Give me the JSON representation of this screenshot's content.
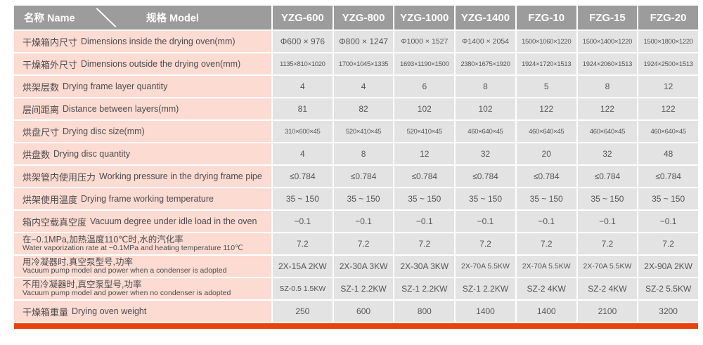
{
  "header": {
    "name_label": "名称 Name",
    "model_label": "规格 Model",
    "models": [
      "YZG-600",
      "YZG-800",
      "YZG-1000",
      "YZG-1400",
      "FZG-10",
      "FZG-15",
      "FZG-20"
    ]
  },
  "rows": [
    {
      "label_zh": "干燥箱内尺寸",
      "label_en": "Dimensions inside the drying oven(mm)",
      "two_line": false,
      "values": [
        "Φ600 × 976",
        "Φ800 × 1247",
        "Φ1000 × 1527",
        "Φ1400 × 2054",
        "1500×1060×1220",
        "1500×1400×1220",
        "1500×1800×1220"
      ]
    },
    {
      "label_zh": "干燥箱外尺寸",
      "label_en": "Dimensions outside the drying oven(mm)",
      "two_line": false,
      "values": [
        "1135×810×1020",
        "1700×1045×1335",
        "1693×1190×1500",
        "2380×1675×1920",
        "1924×1720×1513",
        "1924×2060×1513",
        "1924×2500×1513"
      ]
    },
    {
      "label_zh": "烘架层数",
      "label_en": "Drying frame layer quantity",
      "two_line": false,
      "values": [
        "4",
        "4",
        "6",
        "8",
        "5",
        "8",
        "12"
      ]
    },
    {
      "label_zh": "层间距离",
      "label_en": "Distance between layers(mm)",
      "two_line": false,
      "values": [
        "81",
        "82",
        "102",
        "102",
        "122",
        "122",
        "122"
      ]
    },
    {
      "label_zh": "烘盘尺寸",
      "label_en": "Drying disc size(mm)",
      "two_line": false,
      "values": [
        "310×600×45",
        "520×410×45",
        "520×410×45",
        "460×640×45",
        "460×640×45",
        "460×640×45",
        "460×640×45"
      ]
    },
    {
      "label_zh": "烘盘数",
      "label_en": "Drying disc quantity",
      "two_line": false,
      "values": [
        "4",
        "8",
        "12",
        "32",
        "20",
        "32",
        "48"
      ]
    },
    {
      "label_zh": "烘架管内使用压力",
      "label_en": "Working pressure in the drying frame pipe",
      "two_line": false,
      "values": [
        "≤0.784",
        "≤0.784",
        "≤0.784",
        "≤0.784",
        "≤0.784",
        "≤0.784",
        "≤0.784"
      ]
    },
    {
      "label_zh": "烘架使用温度",
      "label_en": "Drying frame working temperature",
      "two_line": false,
      "values": [
        "35 ~ 150",
        "35 ~ 150",
        "35 ~ 150",
        "35 ~ 150",
        "35 ~ 150",
        "35 ~ 150",
        "35 ~ 150"
      ]
    },
    {
      "label_zh": "箱内空载真空度",
      "label_en": "Vacuum degree under idle load in the oven",
      "two_line": false,
      "values": [
        "−0.1",
        "−0.1",
        "−0.1",
        "−0.1",
        "−0.1",
        "−0.1",
        "−0.1"
      ]
    },
    {
      "label_zh": "在−0.1MPa,加热温度110℃时,水的汽化率",
      "label_en": "Water vaporization rate at −0.1MPa and heating temperature 110℃",
      "two_line": true,
      "values": [
        "7.2",
        "7.2",
        "7.2",
        "7.2",
        "7.2",
        "7.2",
        "7.2"
      ]
    },
    {
      "label_zh": "用冷凝器时,真空泵型号,功率",
      "label_en": "Vacuum pump model and power when a condenser is adopted",
      "two_line": true,
      "values": [
        "2X-15A 2KW",
        "2X-30A 3KW",
        "2X-30A 3KW",
        "2X-70A 5.5KW",
        "2X-70A 5.5KW",
        "2X-70A 5.5KW",
        "2X-90A 2KW"
      ]
    },
    {
      "label_zh": "不用冷凝器时,真空泵型号,功率",
      "label_en": "Vacuum pump model and power when no condenser is adopted",
      "two_line": true,
      "values": [
        "SZ-0.5 1.5KW",
        "SZ-1 2.2KW",
        "SZ-1 2.2KW",
        "SZ-1 2.2KW",
        "SZ-2 4KW",
        "SZ-2 4KW",
        "SZ-2 5.5KW"
      ]
    },
    {
      "label_zh": "干燥箱重量",
      "label_en": "Drying oven weight",
      "two_line": false,
      "values": [
        "250",
        "600",
        "800",
        "1400",
        "1400",
        "2100",
        "3200"
      ]
    }
  ],
  "colors": {
    "header_bg": "#9c9c9c",
    "label_bg": "#fbdbd2",
    "cell_bg": "#e3e3e3",
    "accent_red": "#e8430e"
  }
}
